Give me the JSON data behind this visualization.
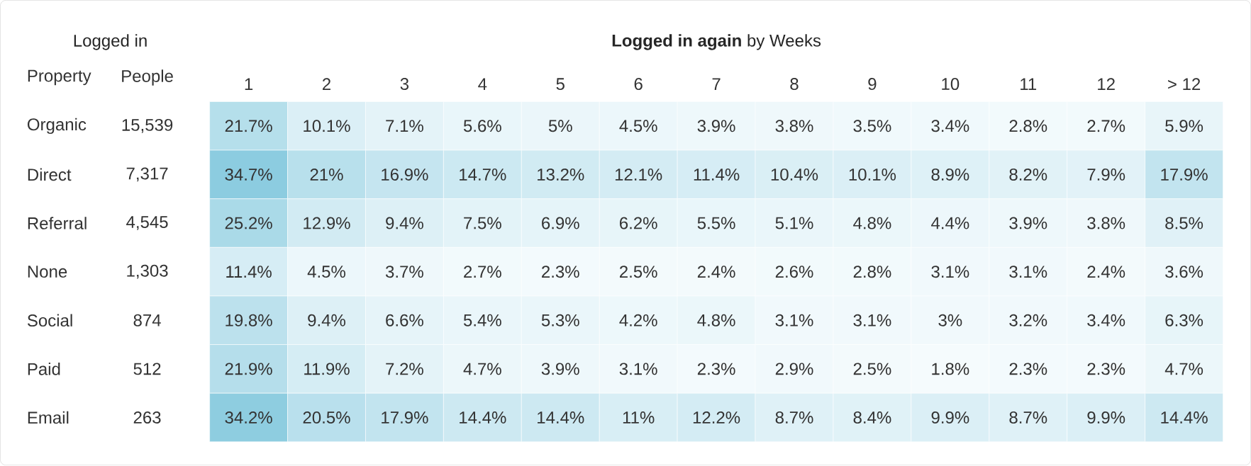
{
  "chart_data": {
    "type": "heatmap",
    "title": "**Logged in again** by Weeks",
    "ylabel": "Logged in",
    "annotations": [
      "Property",
      "People"
    ],
    "categories": [
      "1",
      "2",
      "3",
      "4",
      "5",
      "6",
      "7",
      "8",
      "9",
      "10",
      "11",
      "12",
      "> 12"
    ],
    "y_categories": [
      "Organic",
      "Direct",
      "Referral",
      "None",
      "Social",
      "Paid",
      "Email"
    ],
    "y2_categories": [
      "15,539",
      "7,317",
      "4,545",
      "1,303",
      "874",
      "512",
      "263"
    ],
    "cells": [
      [
        21.7,
        10.1,
        7.1,
        5.6,
        5,
        4.5,
        3.9,
        3.8,
        3.5,
        3.4,
        2.8,
        2.7,
        5.9
      ],
      [
        34.7,
        21,
        16.9,
        14.7,
        13.2,
        12.1,
        11.4,
        10.4,
        10.1,
        8.9,
        8.2,
        7.9,
        17.9
      ],
      [
        25.2,
        12.9,
        9.4,
        7.5,
        6.9,
        6.2,
        5.5,
        5.1,
        4.8,
        4.4,
        3.9,
        3.8,
        8.5
      ],
      [
        11.4,
        4.5,
        3.7,
        2.7,
        2.3,
        2.5,
        2.4,
        2.6,
        2.8,
        3.1,
        3.1,
        2.4,
        3.6
      ],
      [
        19.8,
        9.4,
        6.6,
        5.4,
        5.3,
        4.2,
        4.8,
        3.1,
        3.1,
        3,
        3.2,
        3.4,
        6.3
      ],
      [
        21.9,
        11.9,
        7.2,
        4.7,
        3.9,
        3.1,
        2.3,
        2.9,
        2.5,
        1.8,
        2.3,
        2.3,
        4.7
      ],
      [
        34.2,
        20.5,
        17.9,
        14.4,
        14.4,
        11,
        12.2,
        8.7,
        8.4,
        9.9,
        8.7,
        9.9,
        14.4
      ]
    ],
    "cell_labels": [
      [
        "21.7%",
        "10.1%",
        "7.1%",
        "5.6%",
        "5%",
        "4.5%",
        "3.9%",
        "3.8%",
        "3.5%",
        "3.4%",
        "2.8%",
        "2.7%",
        "5.9%"
      ],
      [
        "34.7%",
        "21%",
        "16.9%",
        "14.7%",
        "13.2%",
        "12.1%",
        "11.4%",
        "10.4%",
        "10.1%",
        "8.9%",
        "8.2%",
        "7.9%",
        "17.9%"
      ],
      [
        "25.2%",
        "12.9%",
        "9.4%",
        "7.5%",
        "6.9%",
        "6.2%",
        "5.5%",
        "5.1%",
        "4.8%",
        "4.4%",
        "3.9%",
        "3.8%",
        "8.5%"
      ],
      [
        "11.4%",
        "4.5%",
        "3.7%",
        "2.7%",
        "2.3%",
        "2.5%",
        "2.4%",
        "2.6%",
        "2.8%",
        "3.1%",
        "3.1%",
        "2.4%",
        "3.6%"
      ],
      [
        "19.8%",
        "9.4%",
        "6.6%",
        "5.4%",
        "5.3%",
        "4.2%",
        "4.8%",
        "3.1%",
        "3.1%",
        "3%",
        "3.2%",
        "3.4%",
        "6.3%"
      ],
      [
        "21.9%",
        "11.9%",
        "7.2%",
        "4.7%",
        "3.9%",
        "3.1%",
        "2.3%",
        "2.9%",
        "2.5%",
        "1.8%",
        "2.3%",
        "2.3%",
        "4.7%"
      ],
      [
        "34.2%",
        "20.5%",
        "17.9%",
        "14.4%",
        "14.4%",
        "11%",
        "12.2%",
        "8.7%",
        "8.4%",
        "9.9%",
        "8.7%",
        "9.9%",
        "14.4%"
      ]
    ]
  }
}
